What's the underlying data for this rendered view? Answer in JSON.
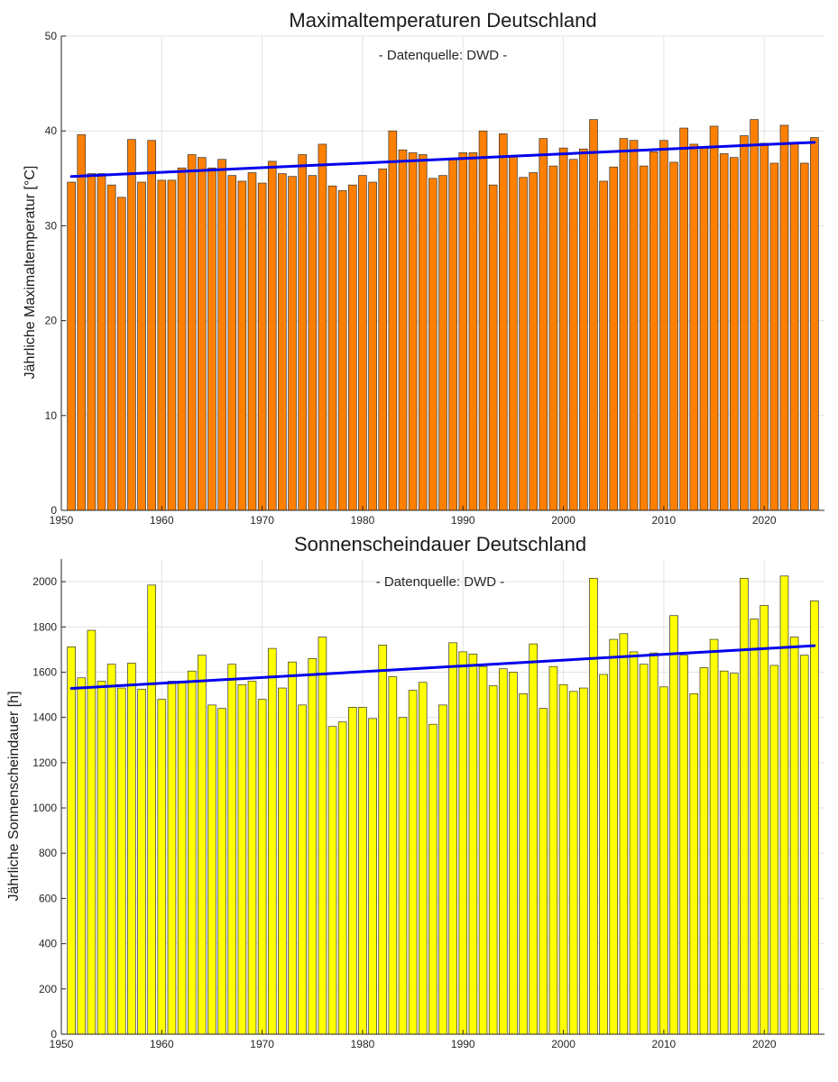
{
  "chart_data": [
    {
      "type": "bar",
      "title": "Maximaltemperaturen Deutschland",
      "subtitle": "- Datenquelle: DWD -",
      "ylabel": "Jährliche Maximaltemperatur [°C]",
      "xlabel": "",
      "xlim": [
        1950,
        2026
      ],
      "ylim": [
        0,
        50
      ],
      "xticks": [
        1950,
        1960,
        1970,
        1980,
        1990,
        2000,
        2010,
        2020
      ],
      "yticks": [
        0,
        10,
        20,
        30,
        40,
        50
      ],
      "grid": true,
      "bar_color": "#ff8000",
      "trend_color": "#0000ee",
      "x": [
        1951,
        1952,
        1953,
        1954,
        1955,
        1956,
        1957,
        1958,
        1959,
        1960,
        1961,
        1962,
        1963,
        1964,
        1965,
        1966,
        1967,
        1968,
        1969,
        1970,
        1971,
        1972,
        1973,
        1974,
        1975,
        1976,
        1977,
        1978,
        1979,
        1980,
        1981,
        1982,
        1983,
        1984,
        1985,
        1986,
        1987,
        1988,
        1989,
        1990,
        1991,
        1992,
        1993,
        1994,
        1995,
        1996,
        1997,
        1998,
        1999,
        2000,
        2001,
        2002,
        2003,
        2004,
        2005,
        2006,
        2007,
        2008,
        2009,
        2010,
        2011,
        2012,
        2013,
        2014,
        2015,
        2016,
        2017,
        2018,
        2019,
        2020,
        2021,
        2022,
        2023,
        2024,
        2025
      ],
      "values": [
        34.6,
        39.6,
        35.5,
        35.5,
        34.3,
        33.0,
        39.1,
        34.6,
        39.0,
        34.8,
        34.8,
        36.1,
        37.5,
        37.2,
        36.1,
        37.0,
        35.3,
        34.7,
        35.6,
        34.5,
        36.8,
        35.5,
        35.2,
        37.5,
        35.3,
        38.6,
        34.2,
        33.7,
        34.3,
        35.3,
        34.6,
        36.0,
        40.0,
        38.0,
        37.7,
        37.5,
        35.0,
        35.3,
        37.1,
        37.7,
        37.7,
        40.0,
        34.3,
        39.7,
        37.3,
        35.1,
        35.6,
        39.2,
        36.3,
        38.2,
        37.0,
        38.1,
        41.2,
        34.7,
        36.2,
        39.2,
        39.0,
        36.3,
        37.8,
        39.0,
        36.7,
        40.3,
        38.6,
        38.2,
        40.5,
        37.6,
        37.2,
        39.5,
        41.2,
        38.7,
        36.6,
        40.6,
        38.8,
        36.6,
        39.3
      ],
      "trend": {
        "x": [
          1951,
          2025
        ],
        "y": [
          35.2,
          38.8
        ]
      }
    },
    {
      "type": "bar",
      "title": "Sonnenscheindauer Deutschland",
      "subtitle": "- Datenquelle: DWD -",
      "ylabel": "Jährliche Sonnenscheindauer [h]",
      "xlabel": "",
      "xlim": [
        1950,
        2026
      ],
      "ylim": [
        0,
        2100
      ],
      "xticks": [
        1950,
        1960,
        1970,
        1980,
        1990,
        2000,
        2010,
        2020
      ],
      "yticks": [
        0,
        200,
        400,
        600,
        800,
        1000,
        1200,
        1400,
        1600,
        1800,
        2000
      ],
      "grid": true,
      "bar_color": "#ffff00",
      "trend_color": "#0000ee",
      "x": [
        1951,
        1952,
        1953,
        1954,
        1955,
        1956,
        1957,
        1958,
        1959,
        1960,
        1961,
        1962,
        1963,
        1964,
        1965,
        1966,
        1967,
        1968,
        1969,
        1970,
        1971,
        1972,
        1973,
        1974,
        1975,
        1976,
        1977,
        1978,
        1979,
        1980,
        1981,
        1982,
        1983,
        1984,
        1985,
        1986,
        1987,
        1988,
        1989,
        1990,
        1991,
        1992,
        1993,
        1994,
        1995,
        1996,
        1997,
        1998,
        1999,
        2000,
        2001,
        2002,
        2003,
        2004,
        2005,
        2006,
        2007,
        2008,
        2009,
        2010,
        2011,
        2012,
        2013,
        2014,
        2015,
        2016,
        2017,
        2018,
        2019,
        2020,
        2021,
        2022,
        2023,
        2024,
        2025
      ],
      "values": [
        1712,
        1575,
        1785,
        1560,
        1635,
        1530,
        1640,
        1525,
        1985,
        1480,
        1560,
        1560,
        1605,
        1675,
        1455,
        1440,
        1635,
        1545,
        1560,
        1480,
        1705,
        1530,
        1645,
        1455,
        1660,
        1755,
        1360,
        1380,
        1445,
        1445,
        1395,
        1720,
        1580,
        1400,
        1520,
        1555,
        1370,
        1455,
        1730,
        1690,
        1680,
        1625,
        1540,
        1615,
        1600,
        1505,
        1725,
        1440,
        1625,
        1545,
        1515,
        1530,
        2015,
        1590,
        1745,
        1770,
        1690,
        1635,
        1685,
        1535,
        1850,
        1675,
        1505,
        1620,
        1745,
        1605,
        1595,
        2015,
        1835,
        1895,
        1630,
        2025,
        1755,
        1675,
        1915
      ],
      "trend": {
        "x": [
          1951,
          2025
        ],
        "y": [
          1528,
          1717
        ]
      }
    }
  ]
}
